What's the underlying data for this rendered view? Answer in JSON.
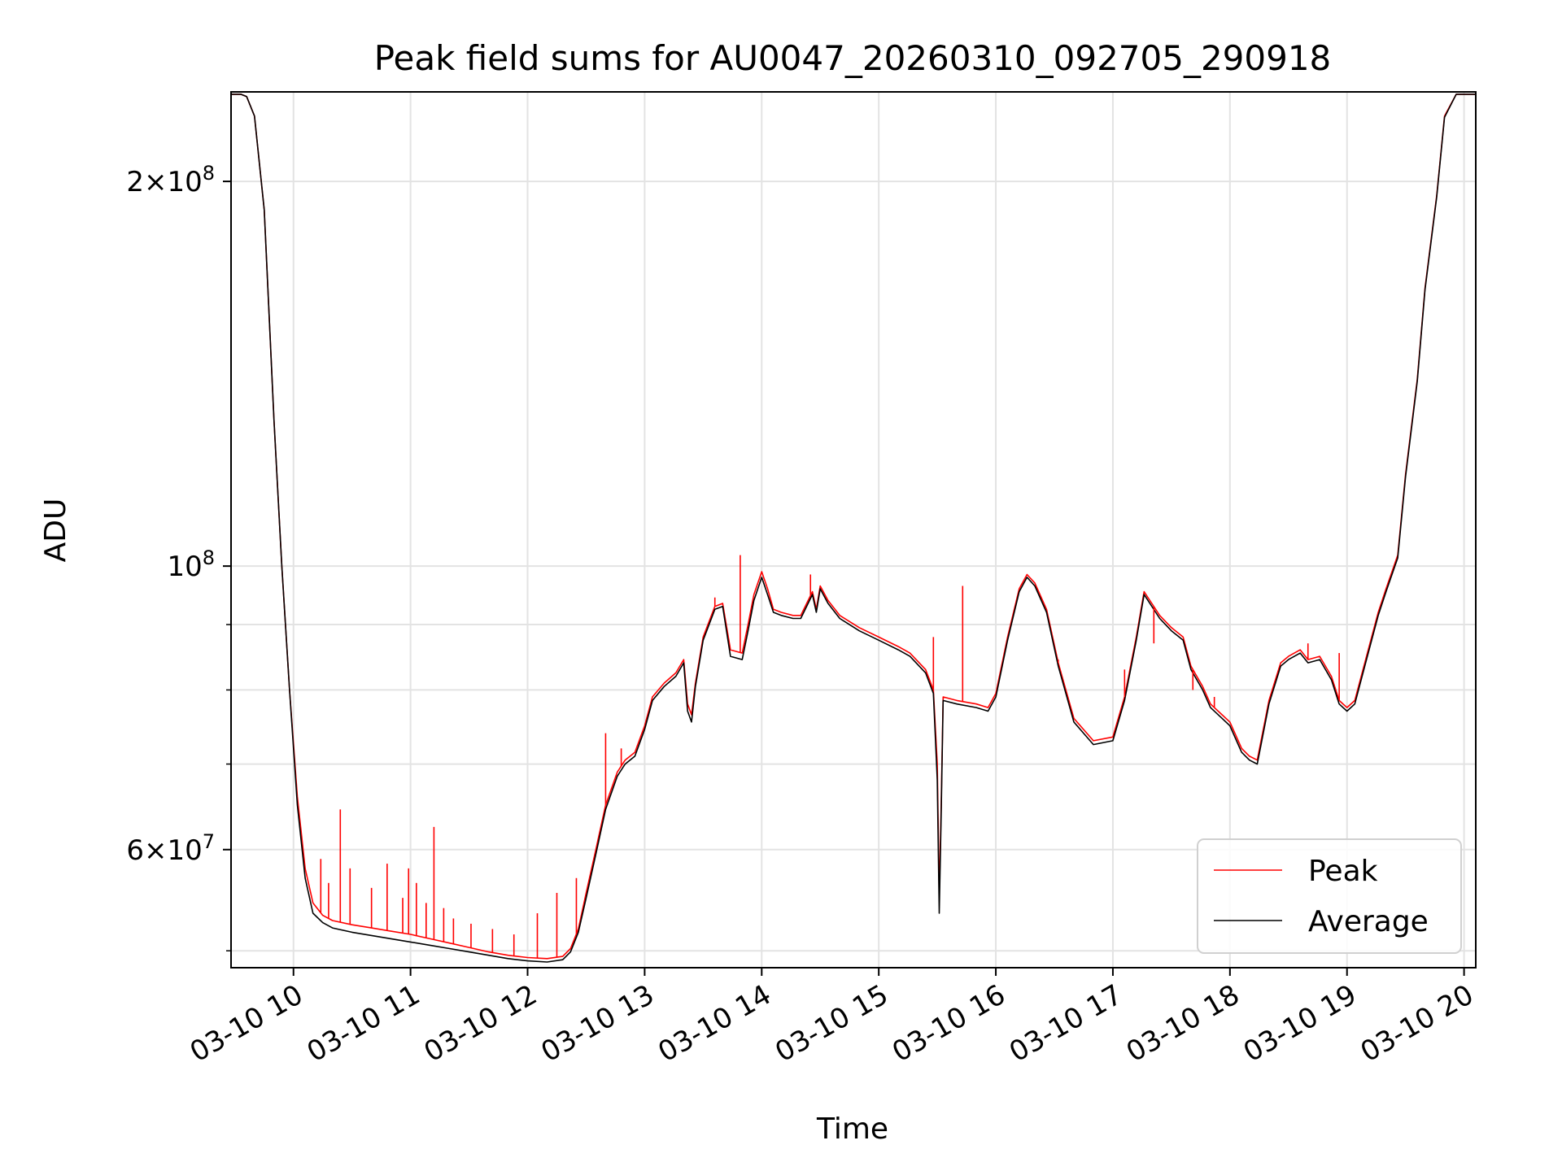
{
  "chart_data": {
    "type": "line",
    "title": "Peak field sums for AU0047_20260310_092705_290918",
    "xlabel": "Time",
    "ylabel": "ADU",
    "yscale": "log",
    "xlim": [
      "2026-03-10 09:28",
      "2026-03-10 20:06"
    ],
    "ylim": [
      48500000,
      235000000
    ],
    "grid": true,
    "legend": "lower right",
    "x_ticks": [
      {
        "value": "2026-03-10 10:00",
        "label": "03-10 10"
      },
      {
        "value": "2026-03-10 11:00",
        "label": "03-10 11"
      },
      {
        "value": "2026-03-10 12:00",
        "label": "03-10 12"
      },
      {
        "value": "2026-03-10 13:00",
        "label": "03-10 13"
      },
      {
        "value": "2026-03-10 14:00",
        "label": "03-10 14"
      },
      {
        "value": "2026-03-10 15:00",
        "label": "03-10 15"
      },
      {
        "value": "2026-03-10 16:00",
        "label": "03-10 16"
      },
      {
        "value": "2026-03-10 17:00",
        "label": "03-10 17"
      },
      {
        "value": "2026-03-10 18:00",
        "label": "03-10 18"
      },
      {
        "value": "2026-03-10 19:00",
        "label": "03-10 19"
      },
      {
        "value": "2026-03-10 20:00",
        "label": "03-10 20"
      }
    ],
    "y_major_ticks": [
      {
        "value": 60000000,
        "mant": "6",
        "exp": "7"
      },
      {
        "value": 100000000,
        "mant": "",
        "exp": "8"
      },
      {
        "value": 200000000,
        "mant": "2",
        "exp": "8"
      }
    ],
    "y_minor_ticks": [
      50000000,
      70000000,
      80000000,
      90000000
    ],
    "series": [
      {
        "name": "Peak",
        "color": "#ff0000",
        "x": [
          "09:28",
          "09:33",
          "09:36",
          "09:40",
          "09:45",
          "09:50",
          "09:54",
          "09:58",
          "10:02",
          "10:06",
          "10:10",
          "10:15",
          "10:20",
          "10:30",
          "10:40",
          "10:50",
          "11:00",
          "11:10",
          "11:20",
          "11:30",
          "11:40",
          "11:50",
          "12:00",
          "12:10",
          "12:18",
          "12:22",
          "12:26",
          "12:30",
          "12:35",
          "12:40",
          "12:46",
          "12:50",
          "12:55",
          "13:00",
          "13:04",
          "13:10",
          "13:16",
          "13:20",
          "13:22",
          "13:24",
          "13:26",
          "13:30",
          "13:36",
          "13:40",
          "13:44",
          "13:50",
          "13:53",
          "13:56",
          "14:00",
          "14:03",
          "14:06",
          "14:10",
          "14:16",
          "14:20",
          "14:26",
          "14:28",
          "14:30",
          "14:34",
          "14:40",
          "14:50",
          "15:00",
          "15:10",
          "15:16",
          "15:24",
          "15:28",
          "15:30",
          "15:31",
          "15:32",
          "15:33",
          "15:40",
          "15:50",
          "15:56",
          "16:00",
          "16:06",
          "16:12",
          "16:16",
          "16:20",
          "16:26",
          "16:32",
          "16:40",
          "16:50",
          "17:00",
          "17:06",
          "17:12",
          "17:16",
          "17:24",
          "17:30",
          "17:36",
          "17:40",
          "17:46",
          "17:50",
          "17:56",
          "18:00",
          "18:06",
          "18:10",
          "18:14",
          "18:20",
          "18:26",
          "18:30",
          "18:36",
          "18:40",
          "18:46",
          "18:52",
          "18:56",
          "19:00",
          "19:04",
          "19:10",
          "19:16",
          "19:20",
          "19:26",
          "19:30",
          "19:36",
          "19:40",
          "19:46",
          "19:50",
          "19:56",
          "20:06"
        ],
        "y": [
          234000000,
          234000000,
          233000000,
          225000000,
          190000000,
          130000000,
          100000000,
          80000000,
          66000000,
          58000000,
          54500000,
          53300000,
          52800000,
          52400000,
          52100000,
          51800000,
          51500000,
          51100000,
          50700000,
          50300000,
          49900000,
          49600000,
          49400000,
          49300000,
          49500000,
          50200000,
          52000000,
          55500000,
          60000000,
          65000000,
          69000000,
          70500000,
          71500000,
          75000000,
          79000000,
          81000000,
          82500000,
          84500000,
          78000000,
          76500000,
          81000000,
          88000000,
          93000000,
          93500000,
          86000000,
          85500000,
          90000000,
          95000000,
          99000000,
          96000000,
          92500000,
          92000000,
          91500000,
          91500000,
          95500000,
          92500000,
          96500000,
          94000000,
          91500000,
          89500000,
          88000000,
          86500000,
          85500000,
          83000000,
          80000000,
          70000000,
          55000000,
          65000000,
          79000000,
          78500000,
          78000000,
          77500000,
          79500000,
          88000000,
          96000000,
          98500000,
          97000000,
          92500000,
          84000000,
          76000000,
          73000000,
          73500000,
          79000000,
          88000000,
          95500000,
          91500000,
          89500000,
          88000000,
          83500000,
          80500000,
          78000000,
          76500000,
          75500000,
          72000000,
          71000000,
          70500000,
          78500000,
          84000000,
          85000000,
          86000000,
          84500000,
          85000000,
          82000000,
          78500000,
          77500000,
          78500000,
          85000000,
          92000000,
          96000000,
          102000000,
          118000000,
          140000000,
          165000000,
          195000000,
          225000000,
          234000000,
          234000000
        ]
      },
      {
        "name": "Average",
        "color": "#000000",
        "x": [
          "09:28",
          "09:33",
          "09:36",
          "09:40",
          "09:45",
          "09:50",
          "09:54",
          "09:58",
          "10:02",
          "10:06",
          "10:10",
          "10:15",
          "10:20",
          "10:30",
          "10:40",
          "10:50",
          "11:00",
          "11:10",
          "11:20",
          "11:30",
          "11:40",
          "11:50",
          "12:00",
          "12:10",
          "12:18",
          "12:22",
          "12:26",
          "12:30",
          "12:35",
          "12:40",
          "12:46",
          "12:50",
          "12:55",
          "13:00",
          "13:04",
          "13:10",
          "13:16",
          "13:20",
          "13:22",
          "13:24",
          "13:26",
          "13:30",
          "13:36",
          "13:40",
          "13:44",
          "13:50",
          "13:53",
          "13:56",
          "14:00",
          "14:03",
          "14:06",
          "14:10",
          "14:16",
          "14:20",
          "14:26",
          "14:28",
          "14:30",
          "14:34",
          "14:40",
          "14:50",
          "15:00",
          "15:10",
          "15:16",
          "15:24",
          "15:28",
          "15:30",
          "15:31",
          "15:32",
          "15:33",
          "15:40",
          "15:50",
          "15:56",
          "16:00",
          "16:06",
          "16:12",
          "16:16",
          "16:20",
          "16:26",
          "16:32",
          "16:40",
          "16:50",
          "17:00",
          "17:06",
          "17:12",
          "17:16",
          "17:24",
          "17:30",
          "17:36",
          "17:40",
          "17:46",
          "17:50",
          "17:56",
          "18:00",
          "18:06",
          "18:10",
          "18:14",
          "18:20",
          "18:26",
          "18:30",
          "18:36",
          "18:40",
          "18:46",
          "18:52",
          "18:56",
          "19:00",
          "19:04",
          "19:10",
          "19:16",
          "19:20",
          "19:26",
          "19:30",
          "19:36",
          "19:40",
          "19:46",
          "19:50",
          "19:56",
          "20:06"
        ],
        "y": [
          234000000,
          234000000,
          233000000,
          225000000,
          190000000,
          130000000,
          100000000,
          80000000,
          65000000,
          57000000,
          53500000,
          52600000,
          52100000,
          51700000,
          51400000,
          51100000,
          50800000,
          50500000,
          50200000,
          49900000,
          49600000,
          49300000,
          49100000,
          49000000,
          49200000,
          49900000,
          51700000,
          55000000,
          59500000,
          64500000,
          68500000,
          70000000,
          71000000,
          74500000,
          78500000,
          80500000,
          82000000,
          84000000,
          77000000,
          75500000,
          80500000,
          87500000,
          92500000,
          93000000,
          85000000,
          84500000,
          89000000,
          94000000,
          98000000,
          95000000,
          92000000,
          91500000,
          91000000,
          91000000,
          95000000,
          92000000,
          96000000,
          93500000,
          91000000,
          89000000,
          87500000,
          86000000,
          85000000,
          82500000,
          79500000,
          68000000,
          53500000,
          64000000,
          78500000,
          78000000,
          77500000,
          77000000,
          79000000,
          87500000,
          95500000,
          98000000,
          96500000,
          92000000,
          83500000,
          75500000,
          72500000,
          73000000,
          78500000,
          87500000,
          95000000,
          91000000,
          89000000,
          87500000,
          83000000,
          80000000,
          77500000,
          76000000,
          75000000,
          71500000,
          70500000,
          70000000,
          78000000,
          83500000,
          84500000,
          85500000,
          84000000,
          84500000,
          81500000,
          78000000,
          77000000,
          78000000,
          84500000,
          91500000,
          95500000,
          101500000,
          117500000,
          139500000,
          164500000,
          194500000,
          224500000,
          234000000,
          234000000
        ]
      }
    ],
    "spikes": {
      "series": "Peak",
      "x": [
        "10:14",
        "10:18",
        "10:24",
        "10:29",
        "10:40",
        "10:48",
        "10:56",
        "10:59",
        "11:03",
        "11:08",
        "11:12",
        "11:17",
        "11:22",
        "11:31",
        "11:42",
        "11:53",
        "12:05",
        "12:15",
        "12:25",
        "12:40",
        "12:48",
        "13:36",
        "13:49",
        "14:25",
        "15:28",
        "15:43",
        "16:32",
        "17:06",
        "17:21",
        "17:41",
        "17:52",
        "18:40",
        "18:56"
      ],
      "y": [
        59000000,
        56500000,
        64500000,
        58000000,
        56000000,
        58500000,
        55000000,
        58000000,
        56500000,
        54500000,
        62500000,
        54000000,
        53000000,
        52500000,
        52000000,
        51500000,
        53500000,
        55500000,
        57000000,
        74000000,
        72000000,
        94500000,
        102000000,
        98500000,
        88000000,
        96500000,
        84500000,
        83000000,
        87000000,
        80000000,
        79000000,
        87000000,
        85500000
      ]
    }
  }
}
